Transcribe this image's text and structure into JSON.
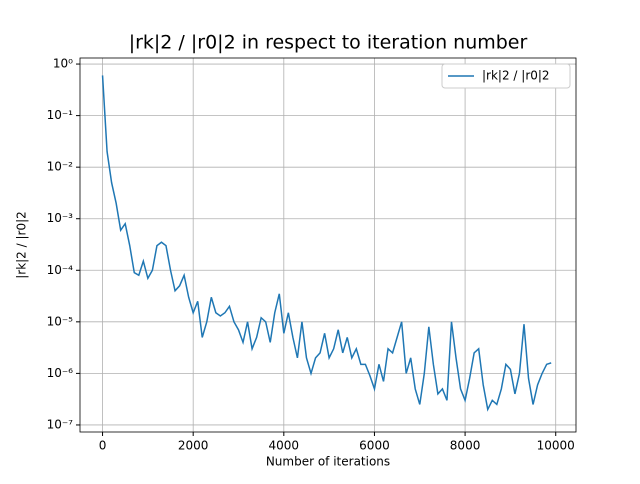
{
  "chart_data": {
    "type": "line",
    "title": "|rk|2 / |r0|2 in respect to iteration number",
    "x_label": "Number of iterations",
    "y_label": "|rk|2 / |r0|2",
    "x": [
      0,
      100,
      200,
      300,
      400,
      500,
      600,
      700,
      800,
      900,
      1000,
      1100,
      1200,
      1300,
      1400,
      1500,
      1600,
      1700,
      1800,
      1900,
      2000,
      2100,
      2200,
      2300,
      2400,
      2500,
      2600,
      2700,
      2800,
      2900,
      3000,
      3100,
      3200,
      3300,
      3400,
      3500,
      3600,
      3700,
      3800,
      3900,
      4000,
      4100,
      4200,
      4300,
      4400,
      4500,
      4600,
      4700,
      4800,
      4900,
      5000,
      5100,
      5200,
      5300,
      5400,
      5500,
      5600,
      5700,
      5800,
      5900,
      6000,
      6100,
      6200,
      6300,
      6400,
      6500,
      6600,
      6700,
      6800,
      6900,
      7000,
      7100,
      7200,
      7300,
      7400,
      7500,
      7600,
      7700,
      7800,
      7900,
      8000,
      8100,
      8200,
      8300,
      8400,
      8500,
      8600,
      8700,
      8800,
      8900,
      9000,
      9100,
      9200,
      9300,
      9400,
      9500,
      9600,
      9700,
      9800,
      9900
    ],
    "series": [
      {
        "name": "|rk|2 / |r0|2",
        "color": "#1f77b4",
        "values": [
          0.6,
          0.02,
          0.005,
          0.002,
          0.0006,
          0.0008,
          0.0003,
          9e-05,
          8e-05,
          0.00015,
          7e-05,
          0.0001,
          0.0003,
          0.00035,
          0.0003,
          0.0001,
          4e-05,
          5e-05,
          8e-05,
          3e-05,
          1.5e-05,
          2.5e-05,
          5e-06,
          1e-05,
          3e-05,
          1.5e-05,
          1.3e-05,
          1.5e-05,
          2e-05,
          1e-05,
          7e-06,
          4e-06,
          1e-05,
          3e-06,
          5e-06,
          1.2e-05,
          1e-05,
          4e-06,
          1.5e-05,
          3.5e-05,
          6e-06,
          1.5e-05,
          5e-06,
          2e-06,
          1e-05,
          2e-06,
          1e-06,
          2e-06,
          2.5e-06,
          6e-06,
          2e-06,
          3e-06,
          7e-06,
          2.5e-06,
          5e-06,
          2e-06,
          3e-06,
          1.5e-06,
          1.5e-06,
          9e-07,
          5e-07,
          1.5e-06,
          7e-07,
          3e-06,
          2.5e-06,
          5e-06,
          1e-05,
          1e-06,
          2e-06,
          5e-07,
          2.5e-07,
          1e-06,
          8e-06,
          1.5e-06,
          4e-07,
          5e-07,
          3e-07,
          1e-05,
          2e-06,
          5e-07,
          3e-07,
          8e-07,
          2.5e-06,
          3e-06,
          6e-07,
          2e-07,
          3e-07,
          2.5e-07,
          5e-07,
          1.5e-06,
          1.2e-06,
          4e-07,
          1e-06,
          9e-06,
          8e-07,
          2.5e-07,
          6e-07,
          1e-06,
          1.5e-06,
          1.6e-06
        ]
      }
    ],
    "xlim": [
      -497.5,
      10447.5
    ],
    "ylim": [
      7.3e-08,
      1.31
    ],
    "yscale": "log",
    "xticks": [
      0,
      2000,
      4000,
      6000,
      8000,
      10000
    ],
    "yticks": [
      {
        "value": 1,
        "label": "10⁰"
      },
      {
        "value": 0.1,
        "label": "10⁻¹"
      },
      {
        "value": 0.01,
        "label": "10⁻²"
      },
      {
        "value": 0.001,
        "label": "10⁻³"
      },
      {
        "value": 0.0001,
        "label": "10⁻⁴"
      },
      {
        "value": 1e-05,
        "label": "10⁻⁵"
      },
      {
        "value": 1e-06,
        "label": "10⁻⁶"
      },
      {
        "value": 1e-07,
        "label": "10⁻⁷"
      }
    ],
    "grid": true,
    "legend": "upper right"
  }
}
